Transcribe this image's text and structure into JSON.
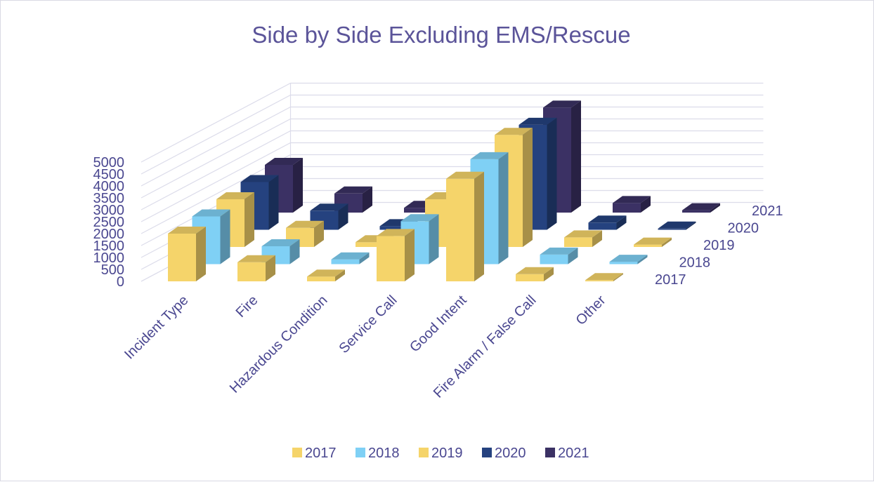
{
  "chart_data": {
    "type": "bar",
    "subtype": "3d-column",
    "title": "Side by Side Excluding EMS/Rescue",
    "categories": [
      "Incident Type",
      "Fire",
      "Hazardous Condition",
      "Service Call",
      "Good Intent",
      "Fire Alarm / False Call",
      "Other"
    ],
    "series": [
      {
        "name": "2017",
        "color": "#f5d46a",
        "values": [
          2000,
          800,
          200,
          1900,
          4300,
          300,
          50
        ]
      },
      {
        "name": "2018",
        "color": "#7fd0f5",
        "values": [
          2000,
          750,
          200,
          1800,
          4400,
          400,
          100
        ]
      },
      {
        "name": "2019",
        "color": "#f5d46a",
        "values": [
          2000,
          800,
          200,
          2000,
          4700,
          400,
          100
        ]
      },
      {
        "name": "2020",
        "color": "#25427f",
        "values": [
          2000,
          800,
          150,
          200,
          4400,
          300,
          50
        ]
      },
      {
        "name": "2021",
        "color": "#3b3164",
        "values": [
          2000,
          800,
          200,
          400,
          4400,
          400,
          100
        ]
      }
    ],
    "y_ticks": [
      "0",
      "500",
      "1000",
      "1500",
      "2000",
      "2500",
      "3000",
      "3500",
      "4000",
      "4500",
      "5000"
    ],
    "ylim": [
      0,
      5000
    ],
    "grid": true,
    "legend": "bottom"
  }
}
